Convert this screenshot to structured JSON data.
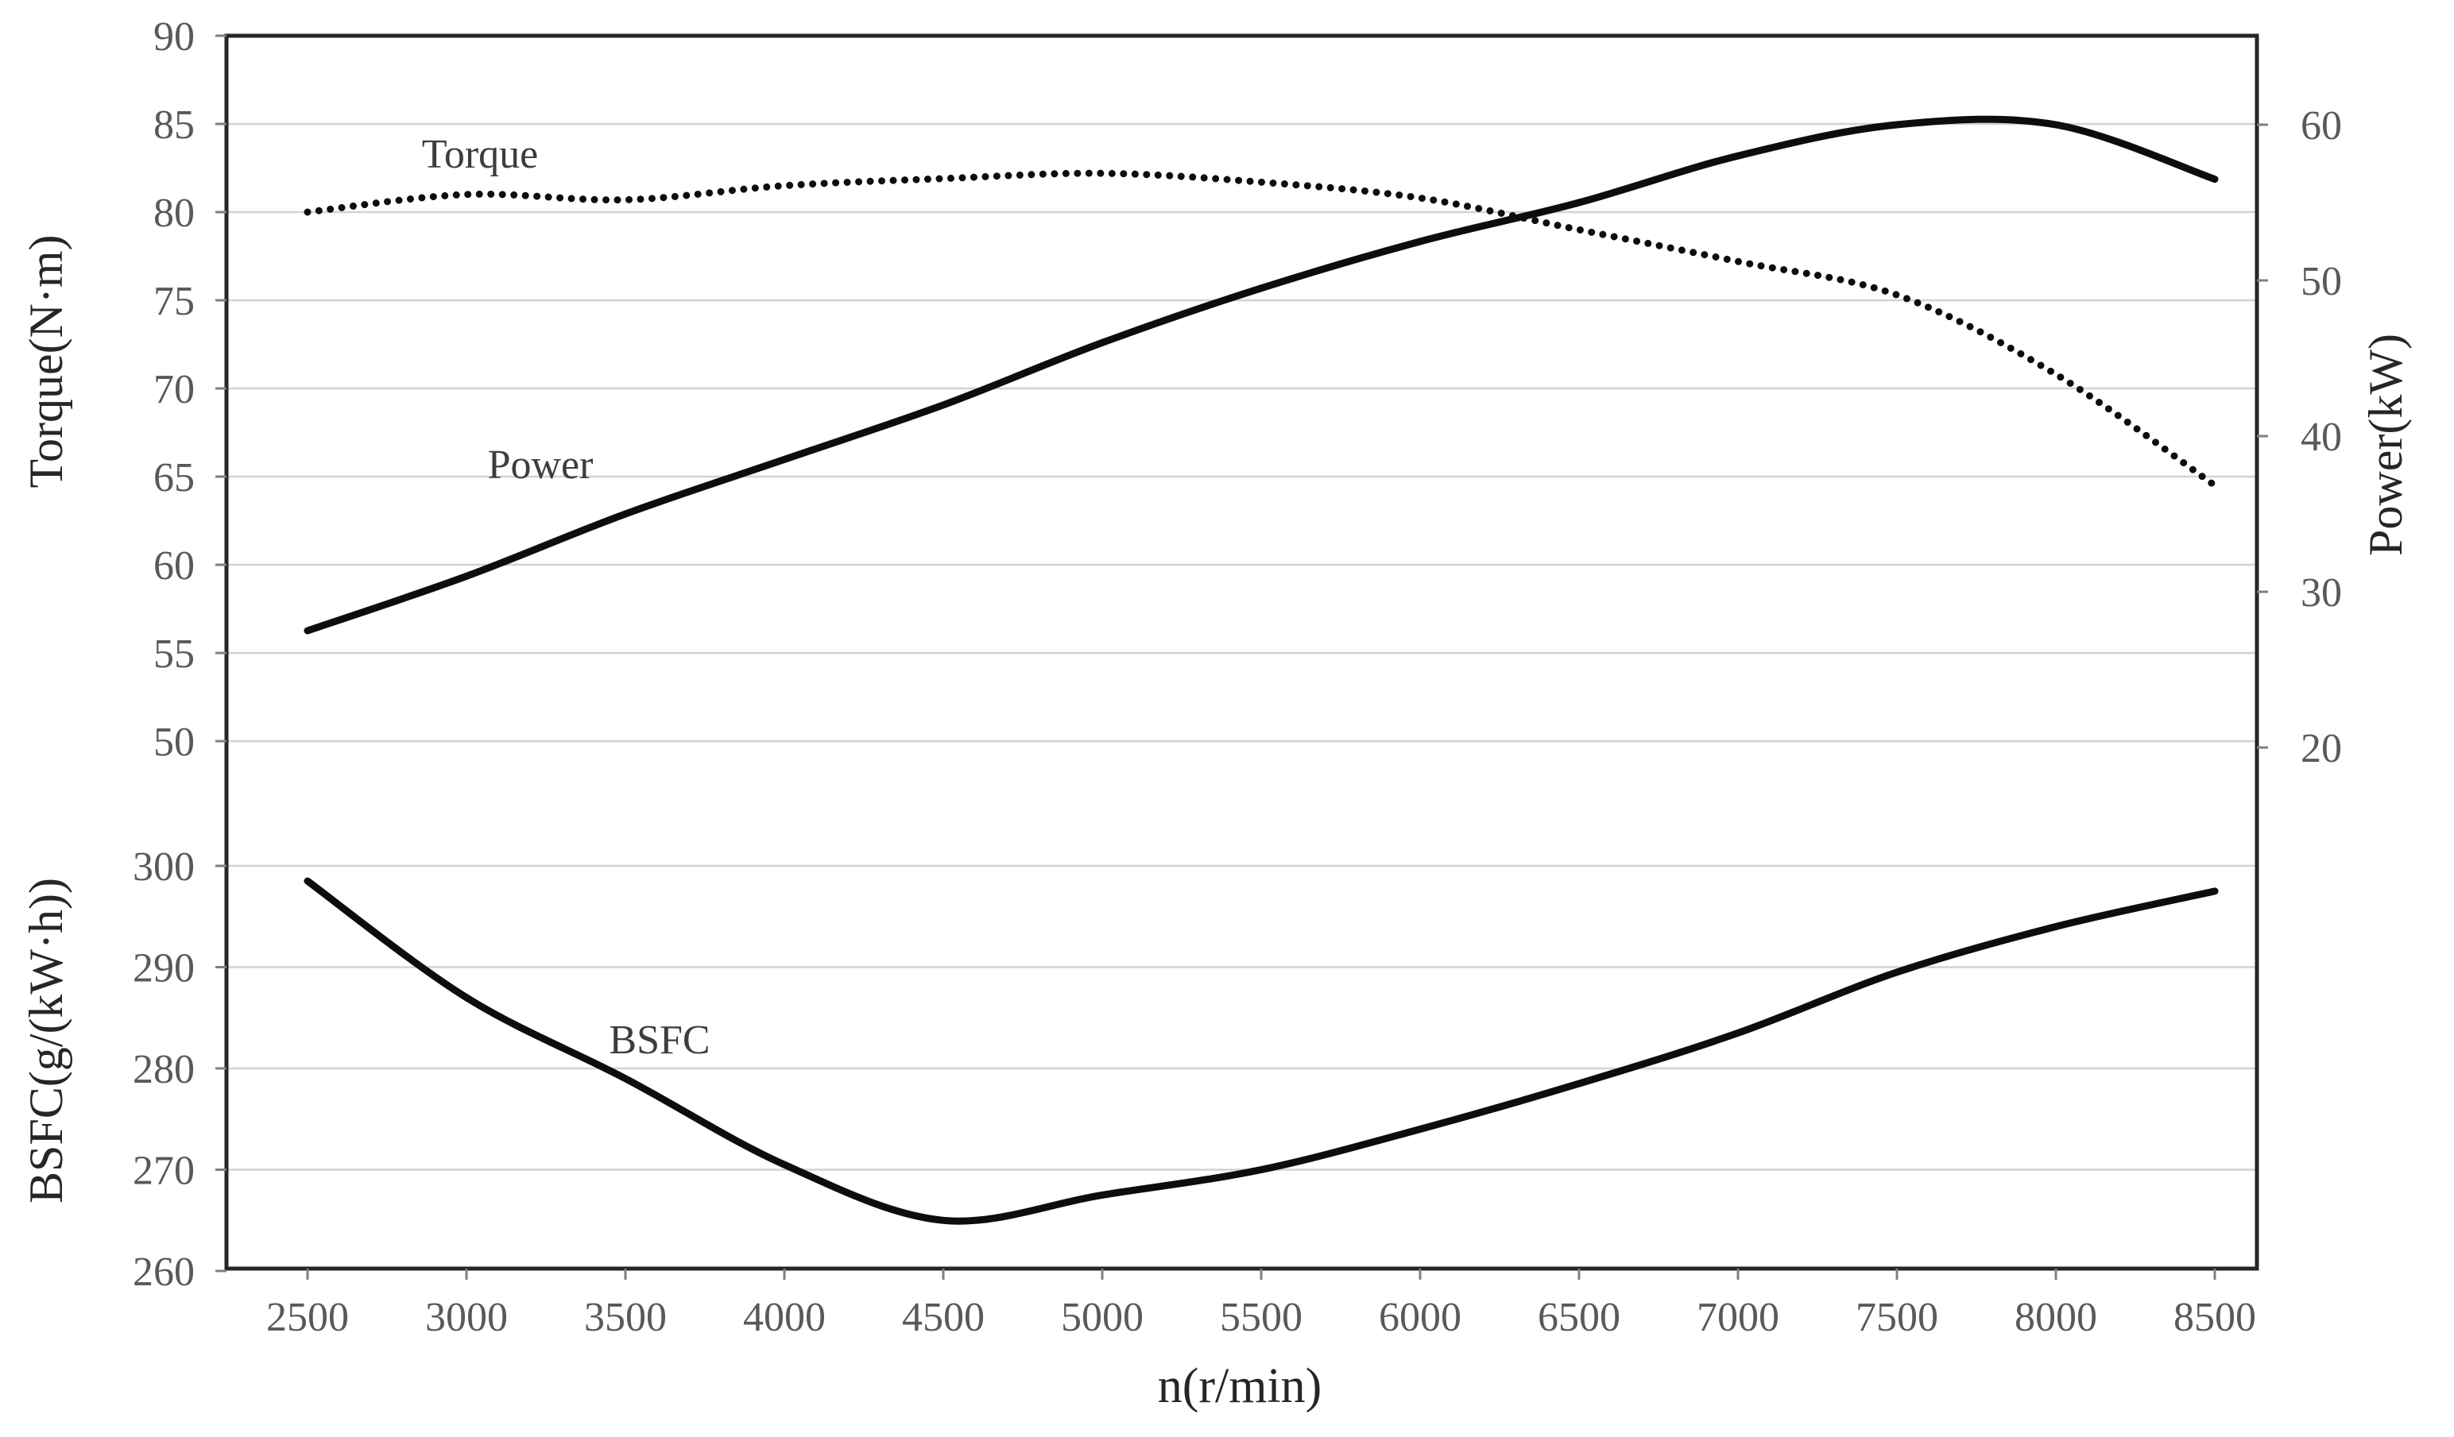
{
  "chart_data": {
    "type": "line",
    "title": "",
    "x": [
      2500,
      3000,
      3500,
      4000,
      4500,
      5000,
      5500,
      6000,
      6500,
      7000,
      7500,
      8000,
      8500
    ],
    "x_axis": {
      "title": "n(r/min)",
      "tick_labels": [
        "2500",
        "3000",
        "3500",
        "4000",
        "4500",
        "5000",
        "5500",
        "6000",
        "6500",
        "7000",
        "7500",
        "8000",
        "8500"
      ],
      "min": 2500,
      "max": 8500,
      "step": 500
    },
    "torque_axis": {
      "title": "Torque(N·m)",
      "tick_labels": [
        "90",
        "85",
        "80",
        "75",
        "70",
        "65",
        "60",
        "55",
        "50"
      ],
      "ticks": [
        90,
        85,
        80,
        75,
        70,
        65,
        60,
        55,
        50
      ],
      "min": 50,
      "max": 90,
      "step": 5,
      "side": "left"
    },
    "power_axis": {
      "title": "Power(kW)",
      "tick_labels": [
        "60",
        "50",
        "40",
        "30",
        "20"
      ],
      "ticks": [
        60,
        50,
        40,
        30,
        20
      ],
      "min": 20,
      "max": 60,
      "step": 10,
      "side": "right"
    },
    "bsfc_axis": {
      "title": "BSFC(g/(kW·h))",
      "tick_labels": [
        "300",
        "290",
        "280",
        "270",
        "260"
      ],
      "ticks": [
        300,
        290,
        280,
        270,
        260
      ],
      "min": 260,
      "max": 300,
      "step": 10,
      "side": "left-lower"
    },
    "series": [
      {
        "name": "torque",
        "label": "Torque",
        "axis": "torque",
        "style": "dotted",
        "values": [
          80,
          81,
          80.7,
          81.5,
          81.9,
          82.2,
          81.7,
          80.8,
          79,
          77.2,
          75.3,
          70.8,
          64.5
        ]
      },
      {
        "name": "power",
        "label": "Power",
        "axis": "power",
        "style": "solid",
        "values": [
          27.5,
          31,
          35,
          38.5,
          42,
          46,
          49.5,
          52.5,
          55,
          58,
          60,
          60,
          56.5
        ]
      },
      {
        "name": "bsfc",
        "label": "BSFC",
        "axis": "bsfc",
        "style": "solid",
        "values": [
          298.5,
          287,
          279,
          270.5,
          265,
          267.5,
          270,
          274,
          278.5,
          283.5,
          289.5,
          294,
          297.5
        ]
      }
    ],
    "legend_position": "inline-labels",
    "grid": "horizontal",
    "colors": {
      "curve": "#0d0d0d",
      "gridline": "#d2d2d2",
      "frame": "#262626",
      "tick_text": "#595959",
      "series_label_text": "#3d3d3d"
    }
  }
}
